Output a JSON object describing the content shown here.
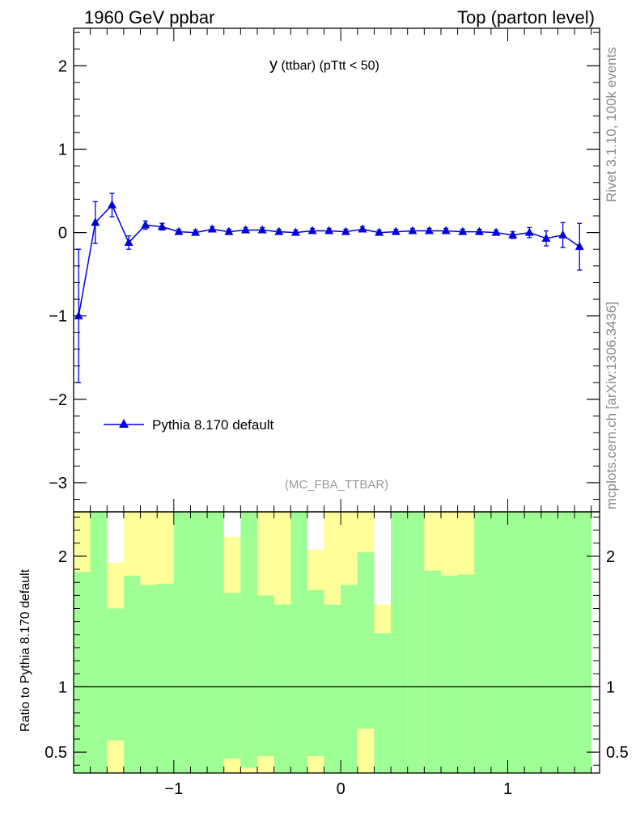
{
  "header": {
    "left": "1960 GeV ppbar",
    "right": "Top (parton level)"
  },
  "side_labels": {
    "rivet": "Rivet 3.1.10,  100k events",
    "mcplots": "mcplots.cern.ch [arXiv:1306.3436]"
  },
  "plot_title": {
    "main": "y",
    "sub": " (ttbar)  (pTtt < 50)"
  },
  "analysis_label": "(MC_FBA_TTBAR)",
  "ratio_ylabel": "Ratio to Pythia 8.170 default",
  "colors": {
    "series": "#0000dd",
    "band_inner": "#9dff94",
    "band_outer": "#ffff99"
  },
  "chart_data": [
    {
      "type": "line",
      "title": "y (ttbar) (pTtt < 50)",
      "xlim": [
        -1.6,
        1.55
      ],
      "ylim": [
        -3.35,
        2.45
      ],
      "y_ticks": [
        -3,
        -2,
        -1,
        0,
        1,
        2
      ],
      "y_tick_labels": [
        "−3",
        "−2",
        "−1",
        "0",
        "1",
        "2"
      ],
      "legend_position": "bottom-left",
      "series": [
        {
          "name": "Pythia 8.170 default",
          "marker": "triangle",
          "x": [
            -1.57,
            -1.47,
            -1.37,
            -1.27,
            -1.17,
            -1.07,
            -0.97,
            -0.87,
            -0.77,
            -0.67,
            -0.57,
            -0.47,
            -0.37,
            -0.27,
            -0.17,
            -0.07,
            0.03,
            0.13,
            0.23,
            0.33,
            0.43,
            0.53,
            0.63,
            0.73,
            0.83,
            0.93,
            1.03,
            1.13,
            1.23,
            1.33,
            1.43
          ],
          "y": [
            -1.0,
            0.12,
            0.33,
            -0.12,
            0.09,
            0.07,
            0.01,
            0.0,
            0.04,
            0.01,
            0.03,
            0.03,
            0.01,
            0.0,
            0.02,
            0.02,
            0.01,
            0.04,
            0.0,
            0.01,
            0.02,
            0.02,
            0.02,
            0.01,
            0.01,
            0.0,
            -0.03,
            0.0,
            -0.07,
            -0.03,
            -0.17
          ],
          "yerr": [
            0.8,
            0.25,
            0.14,
            0.08,
            0.05,
            0.04,
            0.03,
            0.03,
            0.03,
            0.03,
            0.03,
            0.03,
            0.03,
            0.03,
            0.03,
            0.03,
            0.03,
            0.03,
            0.03,
            0.03,
            0.03,
            0.03,
            0.03,
            0.03,
            0.03,
            0.03,
            0.04,
            0.06,
            0.09,
            0.15,
            0.28
          ]
        }
      ]
    },
    {
      "type": "area",
      "title": "",
      "ylabel": "Ratio to Pythia 8.170 default",
      "xlim": [
        -1.6,
        1.55
      ],
      "ylim": [
        0.34,
        2.34
      ],
      "y_ticks": [
        0.5,
        1,
        2
      ],
      "y_tick_labels": [
        "0.5",
        "1",
        "2"
      ],
      "x_ticks": [
        -1,
        0,
        1
      ],
      "x_tick_labels": [
        "−1",
        "0",
        "1"
      ],
      "reference_line": 1,
      "bins": [
        -1.6,
        -1.5,
        -1.4,
        -1.3,
        -1.2,
        -1.1,
        -1.0,
        -0.9,
        -0.8,
        -0.7,
        -0.6,
        -0.5,
        -0.4,
        -0.3,
        -0.2,
        -0.1,
        0.0,
        0.1,
        0.2,
        0.3,
        0.4,
        0.5,
        0.6,
        0.7,
        0.8,
        0.9,
        1.0,
        1.1,
        1.2,
        1.3,
        1.4,
        1.5
      ],
      "band_inner_high": [
        1.88,
        2.5,
        1.6,
        1.85,
        1.78,
        1.79,
        2.5,
        2.5,
        2.5,
        1.72,
        2.5,
        1.7,
        1.63,
        2.5,
        1.74,
        1.63,
        1.78,
        2.03,
        1.41,
        2.5,
        2.5,
        1.89,
        1.85,
        1.86,
        2.5,
        2.5,
        2.5,
        2.5,
        2.5,
        2.5,
        2.5
      ],
      "band_outer_high": [
        2.5,
        2.5,
        1.95,
        2.5,
        2.35,
        2.35,
        2.5,
        2.5,
        2.5,
        2.15,
        2.15,
        2.5,
        2.5,
        2.5,
        2.05,
        2.35,
        2.5,
        2.5,
        1.63,
        2.5,
        2.5,
        2.35,
        2.35,
        2.5,
        2.5,
        2.5,
        2.5,
        2.5,
        2.5,
        2.5,
        2.5
      ],
      "band_inner_low": [
        0.3,
        0.3,
        0.59,
        0.3,
        0.3,
        0.3,
        0.3,
        0.3,
        0.3,
        0.45,
        0.38,
        0.47,
        0.3,
        0.3,
        0.47,
        0.3,
        0.3,
        0.68,
        0.3,
        0.3,
        0.3,
        0.3,
        0.3,
        0.3,
        0.3,
        0.3,
        0.3,
        0.3,
        0.3,
        0.3,
        0.3
      ],
      "band_outer_low": [
        0.3,
        0.3,
        0.3,
        0.3,
        0.3,
        0.3,
        0.3,
        0.3,
        0.3,
        0.3,
        0.3,
        0.3,
        0.3,
        0.3,
        0.3,
        0.3,
        0.3,
        0.3,
        0.3,
        0.3,
        0.3,
        0.3,
        0.3,
        0.3,
        0.3,
        0.3,
        0.3,
        0.3,
        0.3,
        0.3,
        0.3
      ]
    }
  ]
}
